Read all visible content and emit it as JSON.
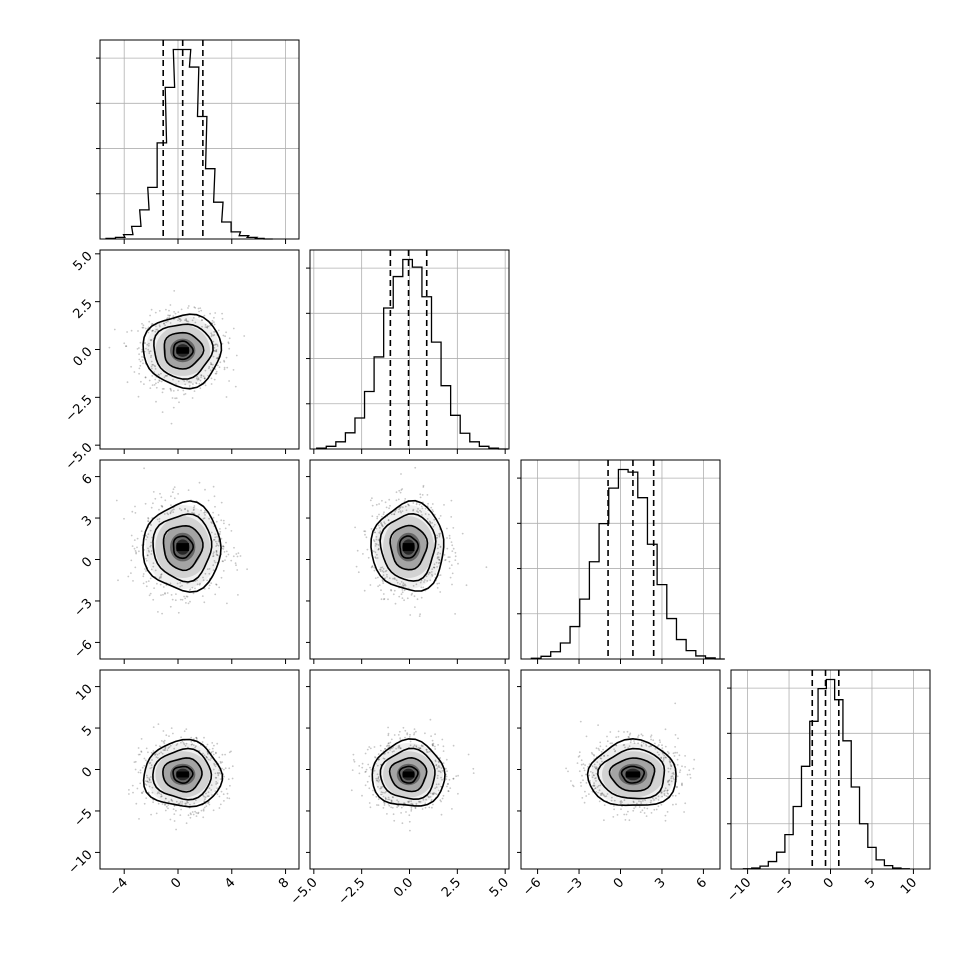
{
  "chart_data": {
    "type": "corner",
    "parameters": [
      {
        "index": 0,
        "range": [
          -5.8,
          9.0
        ],
        "ticks": [
          -4,
          0,
          4,
          8
        ],
        "tick_labels": [
          "−4",
          "0",
          "4",
          "8"
        ],
        "quantiles": [
          -1.1,
          0.35,
          1.85
        ],
        "hist": [
          [
            -5.0,
            0.1
          ],
          [
            -4.3,
            0.3
          ],
          [
            -3.7,
            0.8
          ],
          [
            -3.1,
            2.3
          ],
          [
            -2.5,
            5.3
          ],
          [
            -1.9,
            9.4
          ],
          [
            -1.2,
            17.5
          ],
          [
            -0.6,
            27.6
          ],
          [
            0.0,
            34.5
          ],
          [
            0.6,
            34.5
          ],
          [
            1.2,
            31.3
          ],
          [
            1.8,
            22.3
          ],
          [
            2.4,
            12.8
          ],
          [
            3.0,
            6.7
          ],
          [
            3.6,
            3.1
          ],
          [
            4.3,
            1.3
          ],
          [
            4.9,
            0.6
          ],
          [
            5.5,
            0.3
          ],
          [
            6.1,
            0.1
          ],
          [
            6.7,
            0.0
          ]
        ]
      },
      {
        "index": 1,
        "range": [
          -5.2,
          5.2
        ],
        "ticks": [
          -5.0,
          -2.5,
          0.0,
          2.5,
          5.0
        ],
        "tick_labels": [
          "−5.0",
          "−2.5",
          "0.0",
          "2.5",
          "5.0"
        ],
        "quantiles": [
          -1.0,
          -0.05,
          0.9
        ],
        "hist": [
          [
            -4.6,
            0.2
          ],
          [
            -4.1,
            0.6
          ],
          [
            -3.6,
            1.6
          ],
          [
            -3.1,
            3.6
          ],
          [
            -2.6,
            6.9
          ],
          [
            -2.1,
            12.8
          ],
          [
            -1.6,
            20.5
          ],
          [
            -1.1,
            31.4
          ],
          [
            -0.6,
            38.4
          ],
          [
            -0.1,
            42.2
          ],
          [
            0.4,
            40.5
          ],
          [
            0.9,
            33.9
          ],
          [
            1.4,
            23.8
          ],
          [
            1.9,
            14.1
          ],
          [
            2.4,
            7.5
          ],
          [
            2.9,
            3.5
          ],
          [
            3.4,
            1.6
          ],
          [
            3.9,
            0.6
          ],
          [
            4.4,
            0.2
          ],
          [
            4.9,
            0.0
          ]
        ]
      },
      {
        "index": 2,
        "range": [
          -7.2,
          7.2
        ],
        "ticks": [
          -6,
          -3,
          0,
          3,
          6
        ],
        "tick_labels": [
          "−6",
          "−3",
          "0",
          "3",
          "6"
        ],
        "quantiles": [
          -0.9,
          0.9,
          2.4
        ],
        "hist": [
          [
            -6.1,
            0.2
          ],
          [
            -5.4,
            0.7
          ],
          [
            -4.7,
            1.9
          ],
          [
            -4.0,
            4.2
          ],
          [
            -3.3,
            8.5
          ],
          [
            -2.6,
            15.7
          ],
          [
            -1.9,
            25.5
          ],
          [
            -1.2,
            35.5
          ],
          [
            -0.5,
            44.8
          ],
          [
            0.2,
            49.7
          ],
          [
            0.9,
            49.0
          ],
          [
            1.6,
            42.3
          ],
          [
            2.3,
            30.1
          ],
          [
            3.0,
            19.5
          ],
          [
            3.7,
            10.6
          ],
          [
            4.4,
            5.1
          ],
          [
            5.1,
            2.2
          ],
          [
            5.8,
            0.8
          ],
          [
            6.5,
            0.3
          ],
          [
            7.2,
            0.0
          ]
        ]
      },
      {
        "index": 3,
        "range": [
          -12.0,
          12.0
        ],
        "ticks": [
          -10,
          -5,
          0,
          5,
          10
        ],
        "tick_labels": [
          "−10",
          "−5",
          "0",
          "5",
          "10"
        ],
        "quantiles": [
          -2.2,
          -0.6,
          1.0
        ],
        "hist": [
          [
            -10.0,
            0.1
          ],
          [
            -9.0,
            0.4
          ],
          [
            -8.0,
            1.2
          ],
          [
            -7.0,
            3.1
          ],
          [
            -6.0,
            7.0
          ],
          [
            -5.0,
            14.3
          ],
          [
            -4.0,
            26.0
          ],
          [
            -3.0,
            42.7
          ],
          [
            -2.0,
            61.4
          ],
          [
            -1.0,
            75.0
          ],
          [
            0.0,
            78.8
          ],
          [
            1.0,
            70.4
          ],
          [
            2.0,
            53.3
          ],
          [
            3.0,
            34.1
          ],
          [
            4.0,
            18.8
          ],
          [
            5.0,
            9.0
          ],
          [
            6.0,
            3.8
          ],
          [
            7.0,
            1.4
          ],
          [
            8.0,
            0.4
          ],
          [
            9.0,
            0.1
          ]
        ]
      }
    ],
    "centers": [
      0.35,
      -0.05,
      0.9,
      -0.6
    ],
    "spreads": [
      1.45,
      0.95,
      1.6,
      2.0
    ],
    "contour_levels_sigma": [
      0.5,
      1.0,
      1.5,
      2.0
    ],
    "grid": true,
    "xlabels_rotated_deg": 45
  }
}
